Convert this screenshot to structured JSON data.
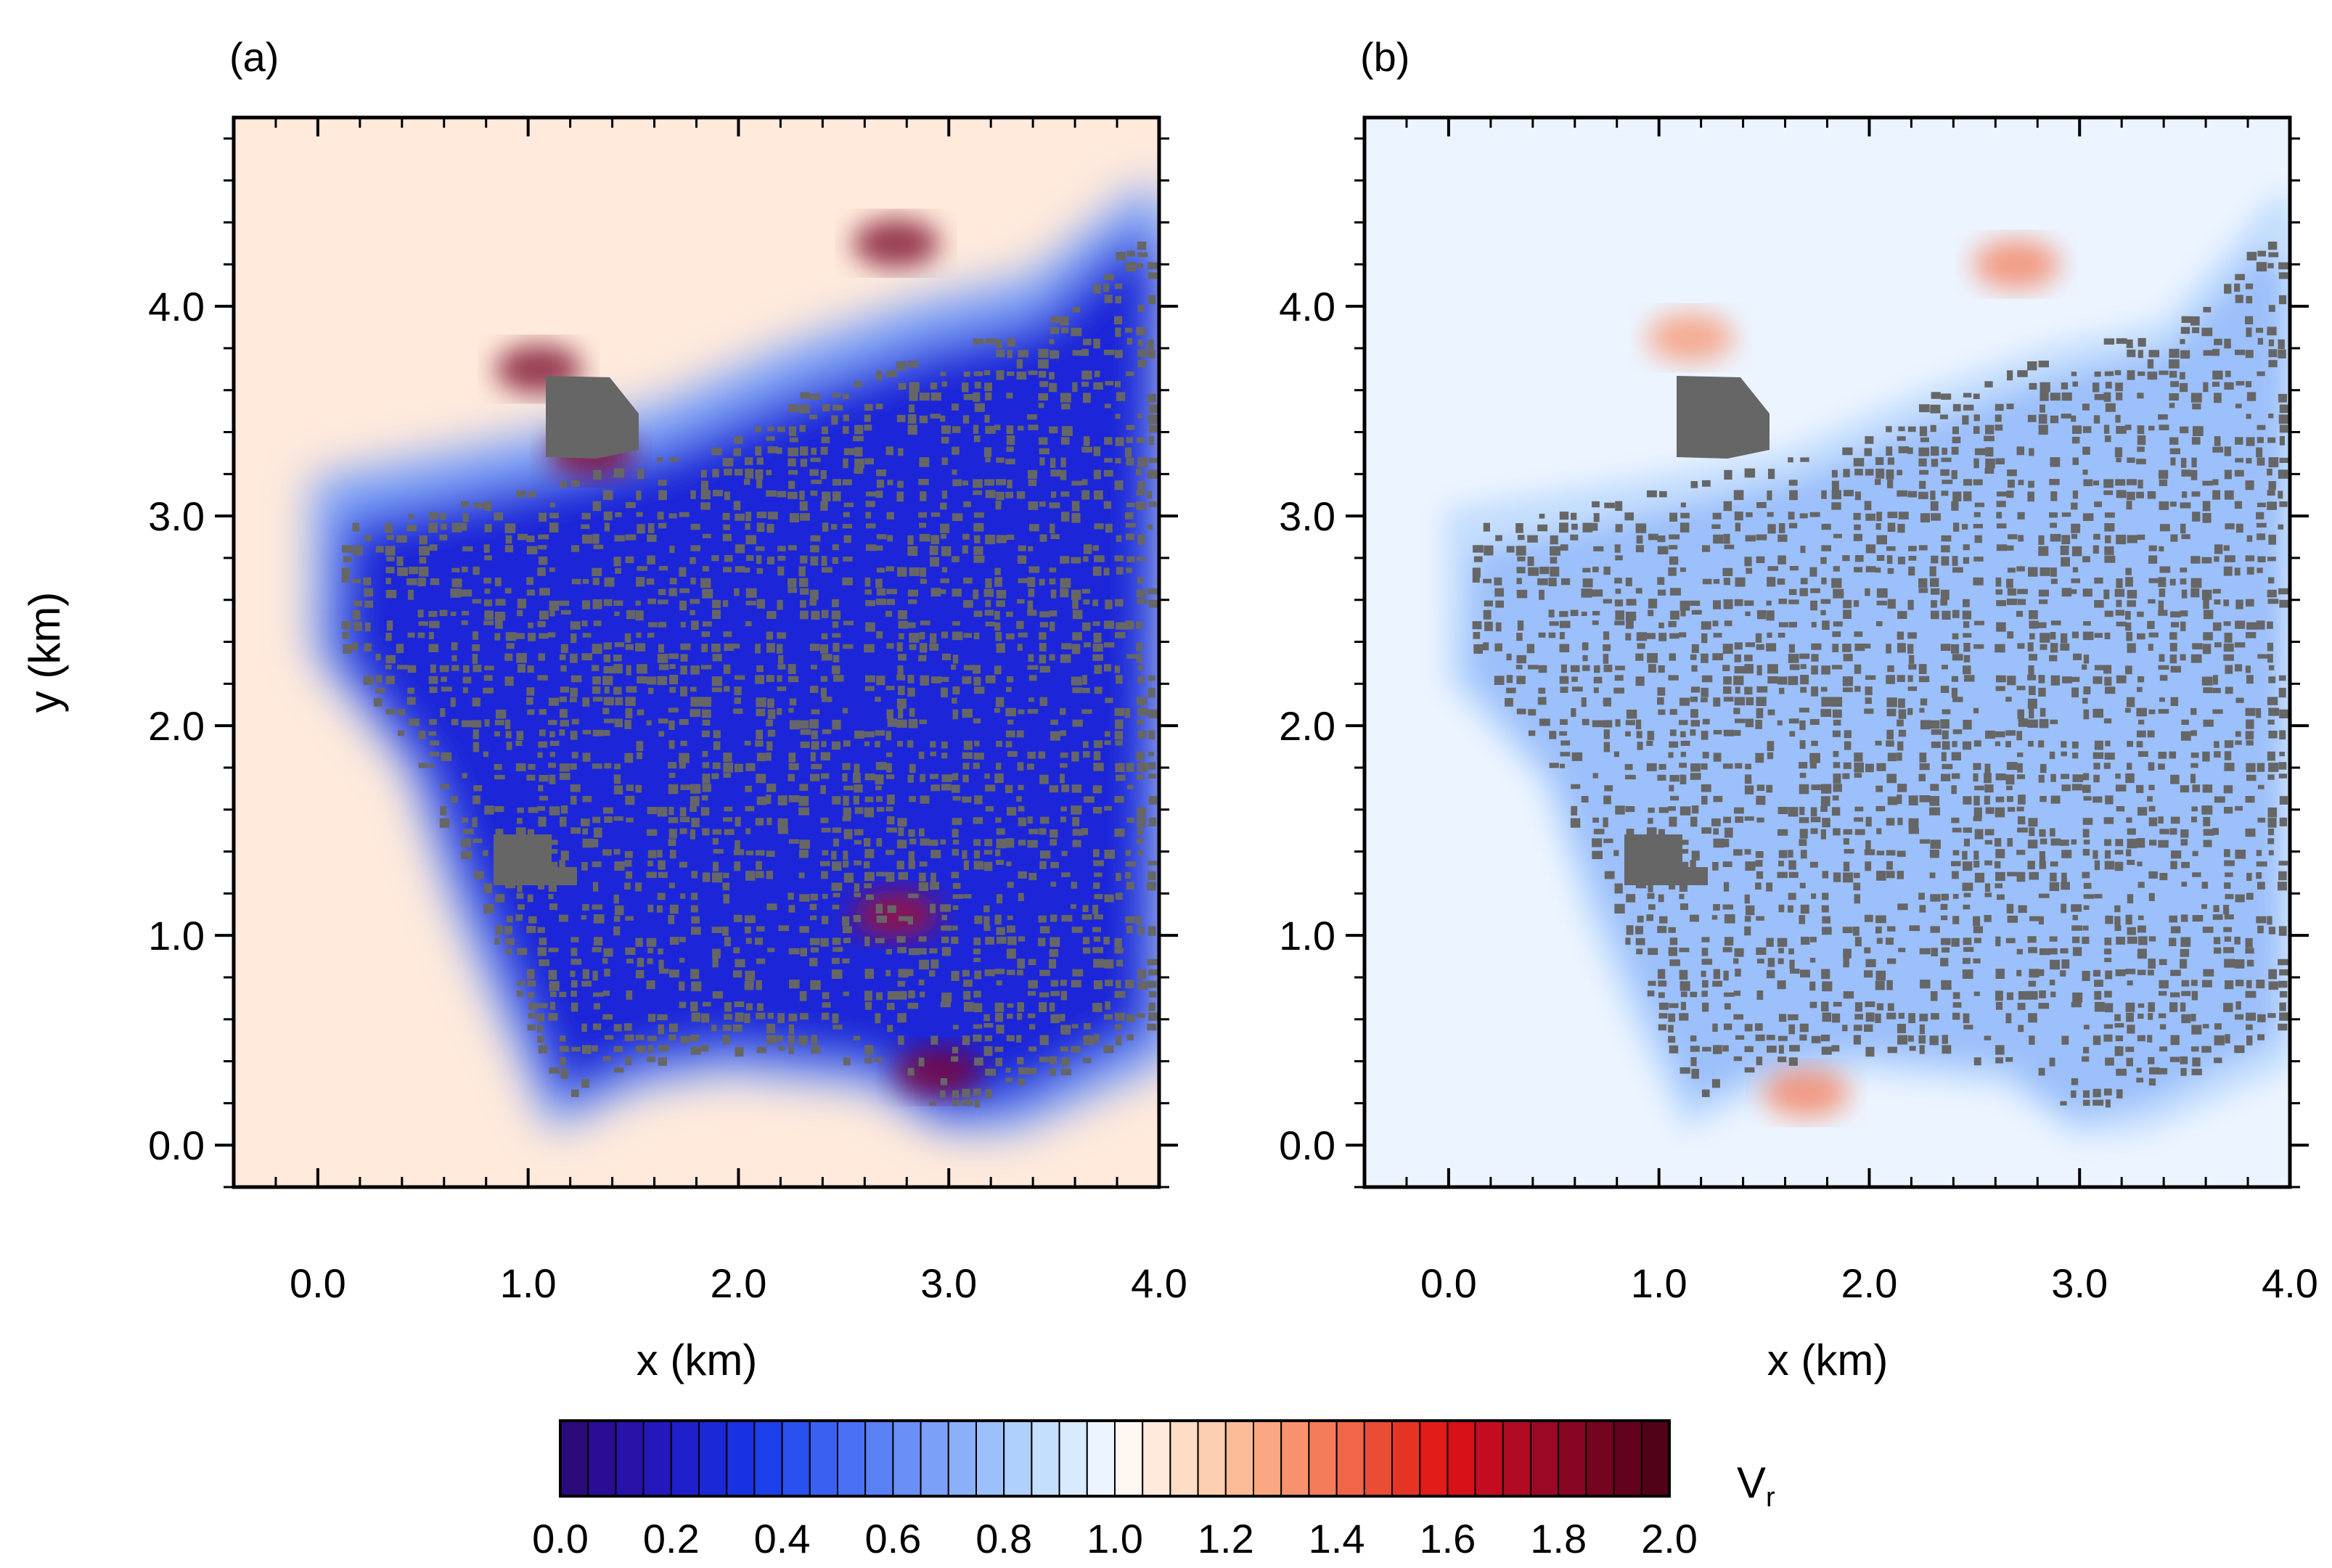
{
  "chart_data": [
    {
      "type": "heatmap",
      "panel_label": "(a)",
      "xlabel": "x (km)",
      "ylabel": "y (km)",
      "xlim": [
        -0.4,
        4.0
      ],
      "ylim": [
        -0.2,
        4.9
      ],
      "xticks": [
        0.0,
        1.0,
        2.0,
        3.0,
        4.0
      ],
      "xtick_labels": [
        "0.0",
        "1.0",
        "2.0",
        "3.0",
        "4.0"
      ],
      "yticks": [
        0.0,
        1.0,
        2.0,
        3.0,
        4.0
      ],
      "ytick_labels": [
        "0.0",
        "1.0",
        "2.0",
        "3.0",
        "4.0"
      ],
      "background_value": 1.05,
      "city_interior_value": 0.3,
      "buildings_color": "#666666",
      "hotspots": [
        {
          "x": 1.05,
          "y": 3.7,
          "value": 1.9
        },
        {
          "x": 2.75,
          "y": 4.3,
          "value": 1.9
        },
        {
          "x": 1.3,
          "y": 3.3,
          "value": 1.8
        },
        {
          "x": 2.95,
          "y": 0.35,
          "value": 1.8
        },
        {
          "x": 2.75,
          "y": 1.1,
          "value": 1.7
        }
      ]
    },
    {
      "type": "heatmap",
      "panel_label": "(b)",
      "xlabel": "x (km)",
      "ylabel": "",
      "xlim": [
        -0.4,
        4.0
      ],
      "ylim": [
        -0.2,
        4.9
      ],
      "xticks": [
        0.0,
        1.0,
        2.0,
        3.0,
        4.0
      ],
      "xtick_labels": [
        "0.0",
        "1.0",
        "2.0",
        "3.0",
        "4.0"
      ],
      "yticks": [
        0.0,
        1.0,
        2.0,
        3.0,
        4.0
      ],
      "ytick_labels": [
        "0.0",
        "1.0",
        "2.0",
        "3.0",
        "4.0"
      ],
      "background_value": 0.97,
      "city_interior_value": 0.75,
      "buildings_color": "#666666",
      "hotspots": [
        {
          "x": 1.15,
          "y": 3.85,
          "value": 1.3
        },
        {
          "x": 2.7,
          "y": 4.2,
          "value": 1.4
        },
        {
          "x": 1.7,
          "y": 0.25,
          "value": 1.35
        }
      ]
    }
  ],
  "colorbar": {
    "label_main": "V",
    "label_sub": "r",
    "min": 0.0,
    "max": 2.0,
    "step": 0.05,
    "tick_labels": [
      "0.0",
      "0.2",
      "0.4",
      "0.6",
      "0.8",
      "1.0",
      "1.2",
      "1.4",
      "1.6",
      "1.8",
      "2.0"
    ],
    "colors": [
      "#2b0a7a",
      "#2a0d92",
      "#2812a8",
      "#2418bc",
      "#1f1fcc",
      "#1a28d8",
      "#1832e2",
      "#1c40ea",
      "#2a50ef",
      "#3a60f2",
      "#4a70f4",
      "#5a80f5",
      "#6a90f6",
      "#7aa0f8",
      "#8ab0fa",
      "#9cc0fb",
      "#b0d0fc",
      "#c4defd",
      "#d8eafe",
      "#ecf4ff",
      "#fff8f2",
      "#ffeadc",
      "#fedcc6",
      "#fdceb0",
      "#fcbc98",
      "#faa882",
      "#f8926c",
      "#f47c58",
      "#f06646",
      "#ea4c34",
      "#e53424",
      "#e21c18",
      "#d81018",
      "#c40c20",
      "#b00a24",
      "#9a0826",
      "#860624",
      "#740420",
      "#62021c",
      "#520218"
    ]
  }
}
